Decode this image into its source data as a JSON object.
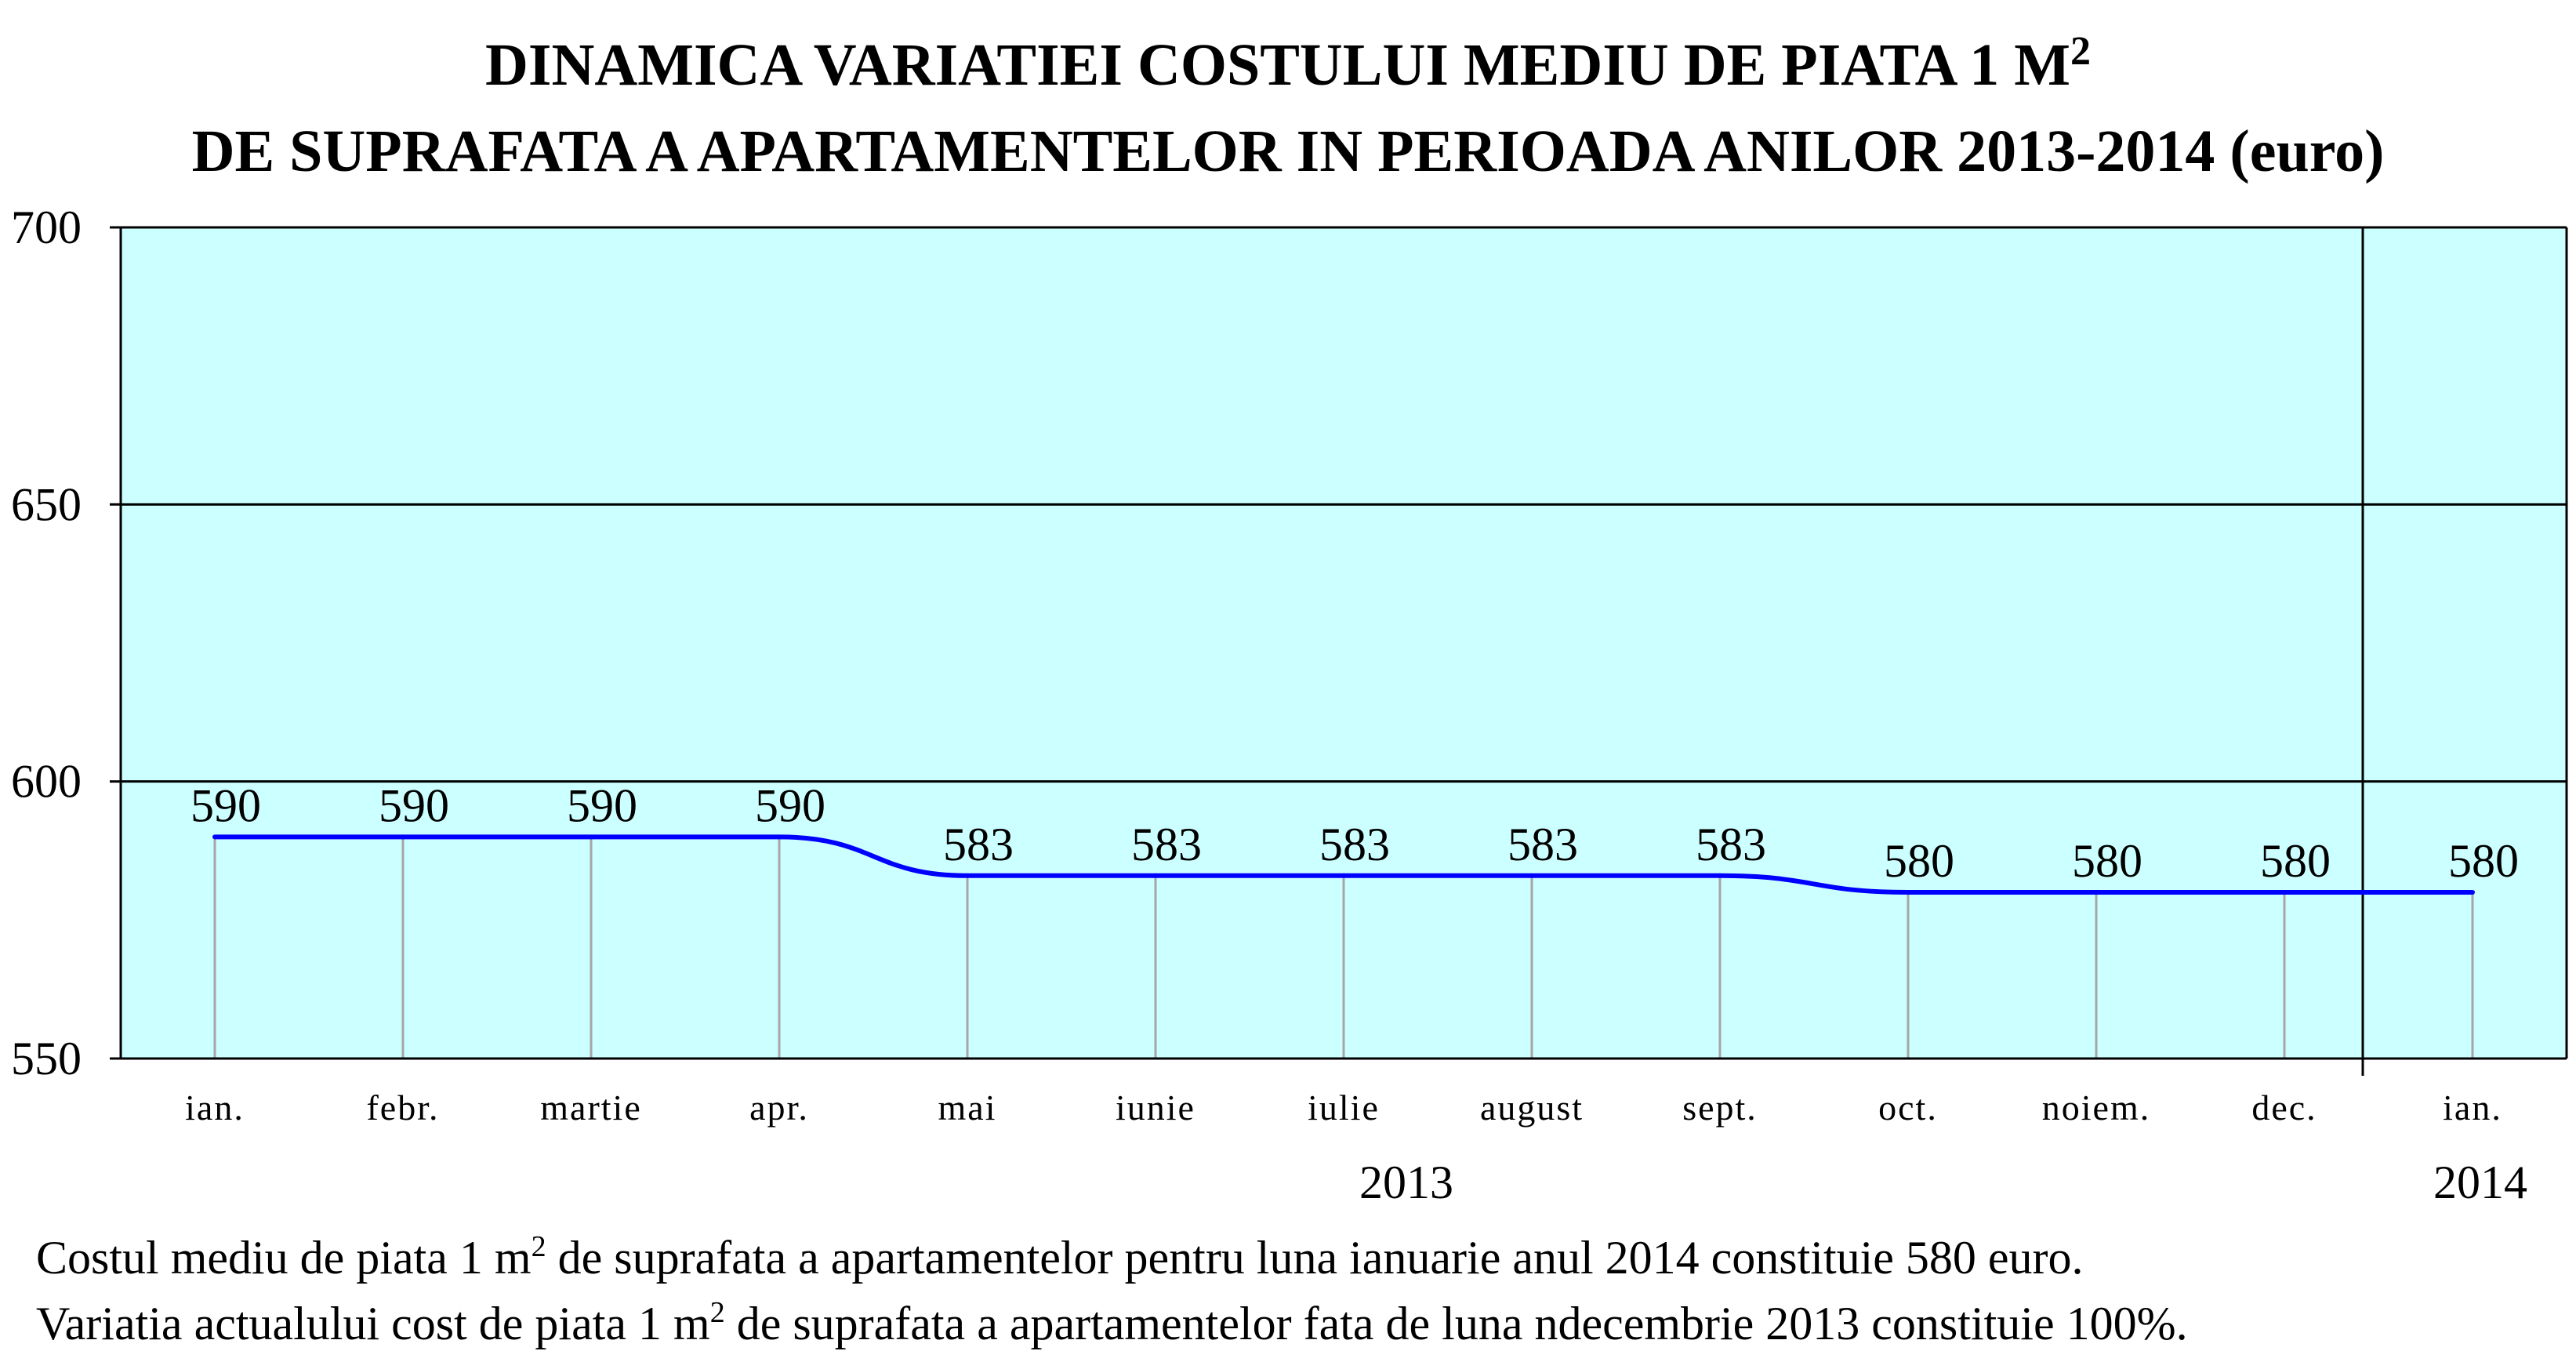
{
  "chart_data": {
    "type": "line",
    "title_line1": "DINAMICA VARIATIEI COSTULUI MEDIU DE PIATA 1 M",
    "title_sup": "2",
    "title_line2": "DE SUPRAFATA A APARTAMENTELOR IN PERIOADA ANILOR 2013-2014 (euro)",
    "categories": [
      "ian.",
      "febr.",
      "martie",
      "apr.",
      "mai",
      "iunie",
      "iulie",
      "august",
      "sept.",
      "oct.",
      "noiem.",
      "dec.",
      "ian."
    ],
    "years": [
      {
        "label": "2013"
      },
      {
        "label": "2014"
      }
    ],
    "series": [
      {
        "values": [
          590,
          590,
          590,
          590,
          583,
          583,
          583,
          583,
          583,
          580,
          580,
          580,
          580
        ]
      }
    ],
    "ylim": [
      550,
      700
    ],
    "yticks": [
      "550",
      "600",
      "650",
      "700"
    ],
    "grid": true,
    "colors": {
      "plot_bg": "#ccffff",
      "line": "#0000ff",
      "grid": "#000000",
      "drop_lines": "#a6a6a6"
    }
  },
  "footnotes": {
    "line1_a": "Costul mediu de piata 1 m",
    "line1_sup": "2",
    "line1_b": " de suprafata a apartamentelor pentru luna ianuarie anul 2014 constituie 580 euro.",
    "line2_a": "Variatia actualului cost de piata 1 m",
    "line2_sup": "2",
    "line2_b": " de suprafata a apartamentelor fata de luna ndecembrie 2013 constituie 100%."
  }
}
